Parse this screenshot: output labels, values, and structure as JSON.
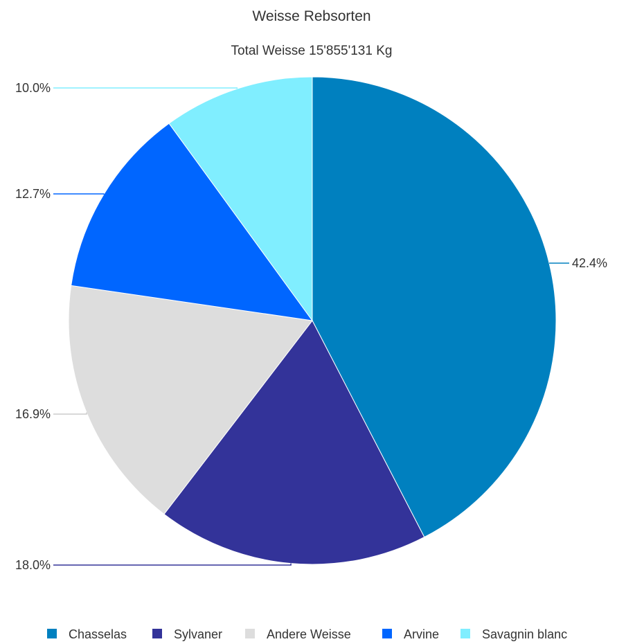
{
  "chart_data": {
    "type": "pie",
    "title": "Weisse Rebsorten",
    "subtitle": "Total Weisse 15'855'131 Kg",
    "slices": [
      {
        "name": "Chasselas",
        "value": 42.4,
        "label": "42.4%",
        "color": "#0080bf"
      },
      {
        "name": "Sylvaner",
        "value": 18.0,
        "label": "18.0%",
        "color": "#333399"
      },
      {
        "name": "Andere Weisse",
        "value": 16.9,
        "label": "16.9%",
        "color": "#dddddd"
      },
      {
        "name": "Arvine",
        "value": 12.7,
        "label": "12.7%",
        "color": "#0066ff"
      },
      {
        "name": "Savagnin blanc",
        "value": 10.0,
        "label": "10.0%",
        "color": "#80eeff"
      }
    ],
    "legend_position": "bottom"
  }
}
